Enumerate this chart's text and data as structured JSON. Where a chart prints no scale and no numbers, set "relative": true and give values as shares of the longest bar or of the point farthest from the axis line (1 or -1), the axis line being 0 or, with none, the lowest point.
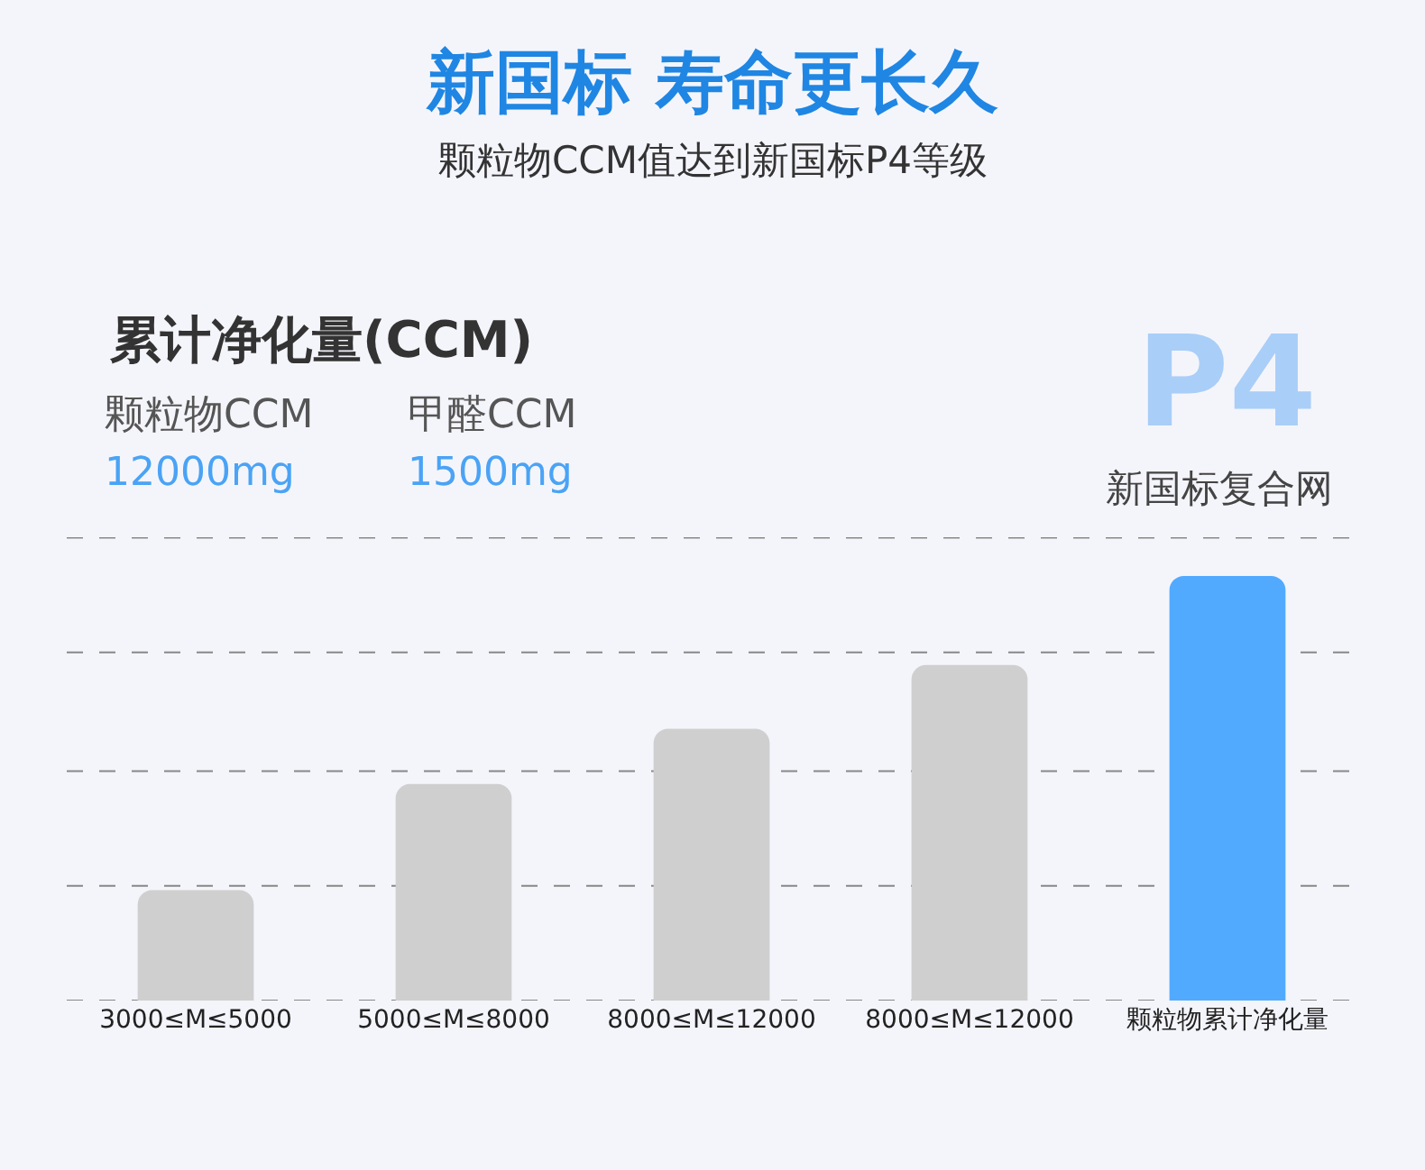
{
  "chart_data": {
    "type": "bar",
    "title": "新国标 寿命更长久",
    "subtitle": "颗粒物CCM值达到新国标P4等级",
    "categories": [
      "3000≤M≤5000",
      "5000≤M≤8000",
      "8000≤M≤12000",
      "8000≤M≤12000",
      "颗粒物累计净化量"
    ],
    "values": [
      0.26,
      0.51,
      0.64,
      0.79,
      1
    ],
    "colors": [
      "#cfcfcf",
      "#cfcfcf",
      "#cfcfcf",
      "#cfcfcf",
      "#52aaff"
    ],
    "relative": true,
    "legend": false,
    "ref_lines": [
      {
        "axis": "y",
        "value": 0,
        "color": "#888888",
        "line_style": "dashed"
      },
      {
        "axis": "y",
        "value": 0.27,
        "color": "#888888",
        "line_style": "dashed"
      },
      {
        "axis": "y",
        "value": 0.54,
        "color": "#888888",
        "line_style": "dashed"
      },
      {
        "axis": "y",
        "value": 0.82,
        "color": "#888888",
        "line_style": "dashed"
      },
      {
        "axis": "y",
        "value": 1.09,
        "color": "#888888",
        "line_style": "dashed"
      }
    ],
    "annotations": [
      "累计净化量(CCM)",
      "颗粒物CCM",
      "12000mg",
      "甲醛CCM",
      "1500mg",
      "P4",
      "新国标复合网"
    ]
  }
}
